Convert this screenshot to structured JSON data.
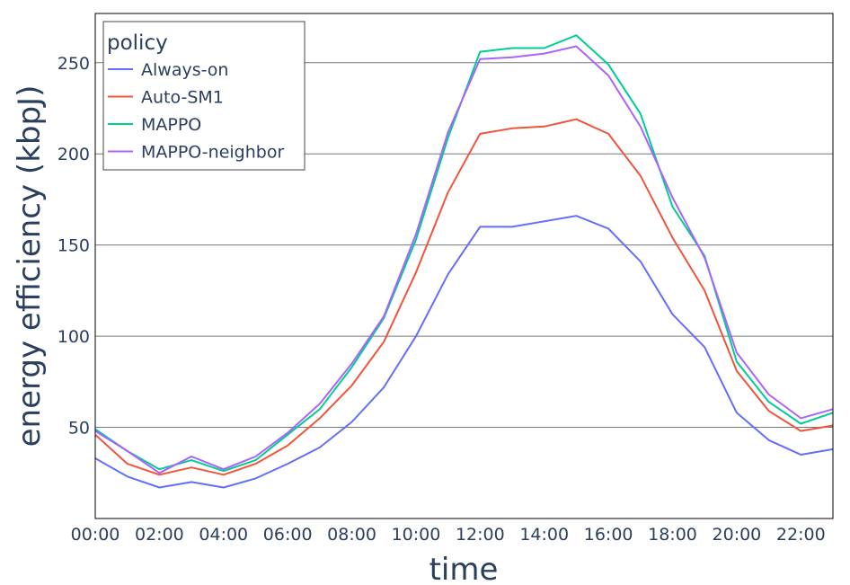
{
  "chart_data": {
    "type": "line",
    "xlabel": "time",
    "ylabel": "energy efficiency (kbpJ)",
    "x": [
      "00:00",
      "01:00",
      "02:00",
      "03:00",
      "04:00",
      "05:00",
      "06:00",
      "07:00",
      "08:00",
      "09:00",
      "10:00",
      "11:00",
      "12:00",
      "13:00",
      "14:00",
      "15:00",
      "16:00",
      "17:00",
      "18:00",
      "19:00",
      "20:00",
      "21:00",
      "22:00",
      "23:00"
    ],
    "x_tick_labels": [
      "00:00",
      "02:00",
      "04:00",
      "06:00",
      "08:00",
      "10:00",
      "12:00",
      "14:00",
      "16:00",
      "18:00",
      "20:00",
      "22:00"
    ],
    "y_ticks": [
      50,
      100,
      150,
      200,
      250
    ],
    "ylim": [
      0,
      277
    ],
    "grid": true,
    "legend": {
      "title": "policy",
      "position": "top-left"
    },
    "series": [
      {
        "name": "Always-on",
        "color": "#636efa",
        "values": [
          33,
          23,
          17,
          20,
          17,
          22,
          30,
          39,
          53,
          72,
          100,
          134,
          160,
          160,
          163,
          166,
          159,
          141,
          112,
          94,
          58,
          43,
          35,
          38
        ]
      },
      {
        "name": "Auto-SM1",
        "color": "#ef553b",
        "values": [
          46,
          30,
          24,
          28,
          24,
          30,
          40,
          55,
          73,
          97,
          135,
          179,
          211,
          214,
          215,
          219,
          211,
          188,
          154,
          125,
          81,
          59,
          48,
          51
        ]
      },
      {
        "name": "MAPPO",
        "color": "#00cc96",
        "values": [
          49,
          37,
          27,
          32,
          26,
          32,
          46,
          60,
          83,
          110,
          153,
          209,
          256,
          258,
          258,
          265,
          249,
          222,
          171,
          144,
          86,
          64,
          52,
          58
        ]
      },
      {
        "name": "MAPPO-neighbor",
        "color": "#ab63fa",
        "values": [
          48,
          37,
          25,
          34,
          27,
          34,
          47,
          63,
          85,
          111,
          156,
          212,
          252,
          253,
          255,
          259,
          243,
          215,
          176,
          143,
          91,
          68,
          55,
          60
        ]
      }
    ]
  }
}
